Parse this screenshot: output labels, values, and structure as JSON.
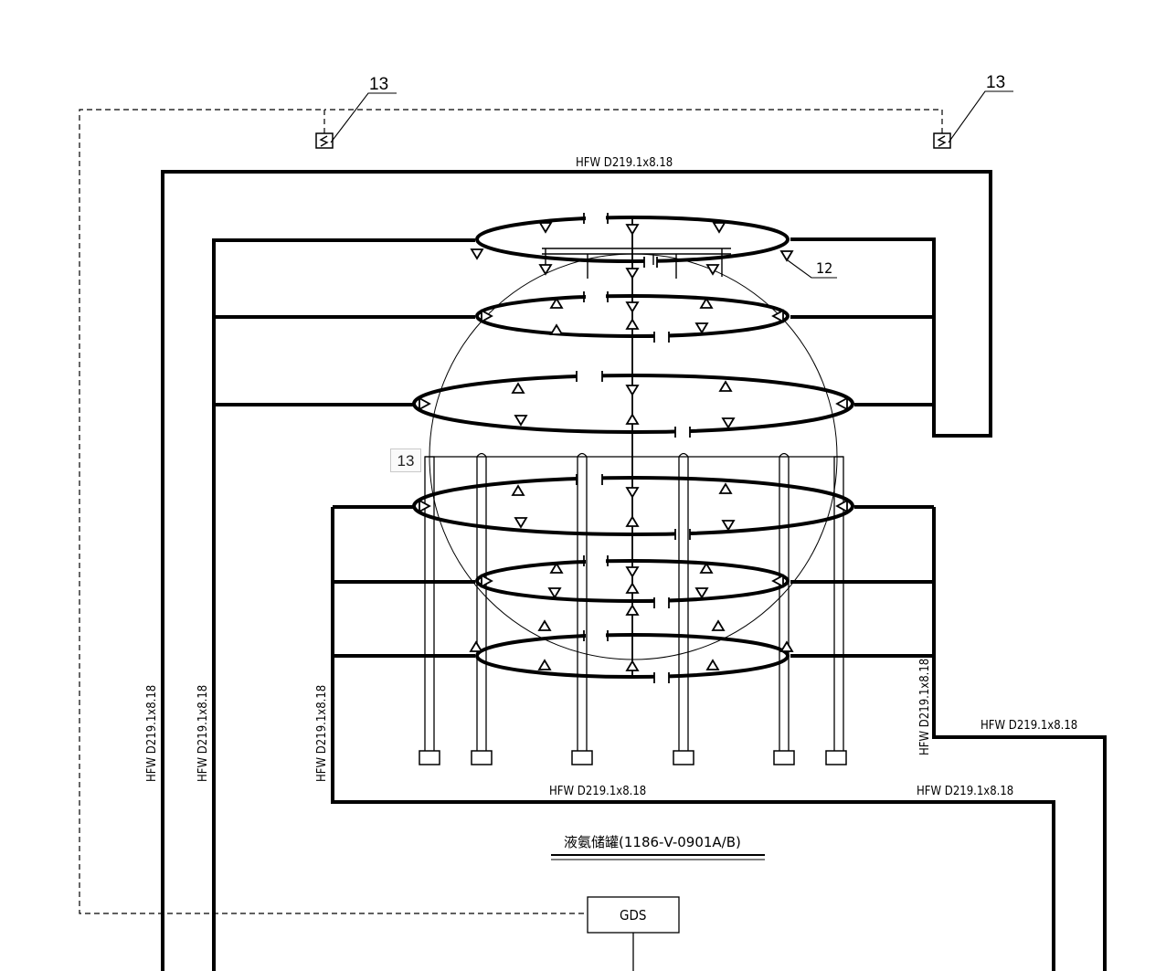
{
  "callouts": {
    "sensor_left": "13",
    "sensor_right": "13",
    "valve": "12",
    "riser_tag": "13"
  },
  "pipe_labels": {
    "top": "HFW D219.1x8.18",
    "left_outer": "HFW D219.1x8.18",
    "left_inner": "HFW D219.1x8.18",
    "left_lower": "HFW D219.1x8.18",
    "right_vertical": "HFW D219.1x8.18",
    "right_upper": "HFW D219.1x8.18",
    "bottom_center": "HFW D219.1x8.18",
    "bottom_right": "HFW D219.1x8.18"
  },
  "vessel_title": "液氨储罐(1186-V-0901A/B)",
  "gds_label": "GDS",
  "colors": {
    "line": "#000000",
    "background": "#ffffff"
  }
}
